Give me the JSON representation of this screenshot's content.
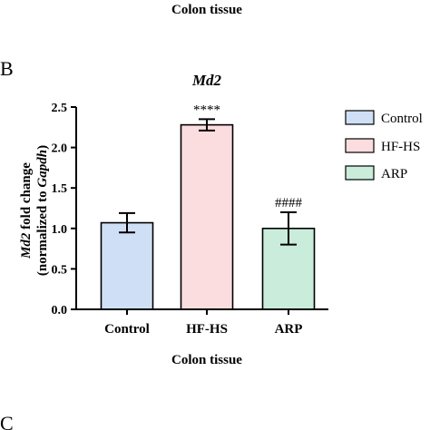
{
  "top_caption": "Colon tissue",
  "panel_b": "B",
  "panel_c": "C",
  "chart_data": {
    "type": "bar",
    "title": "Md2",
    "ylabel": {
      "line1_italic": "Md2",
      "line1_rest": " fold change",
      "line2_pre": "(normalized to ",
      "line2_italic": "Gapdh",
      "line2_post": ")"
    },
    "xlabel": "Colon tissue",
    "ylim": [
      0.0,
      2.5
    ],
    "yticks": [
      "0.0",
      "0.5",
      "1.0",
      "1.5",
      "2.0",
      "2.5"
    ],
    "categories": [
      "Control",
      "HF-HS",
      "ARP"
    ],
    "values": [
      1.07,
      2.28,
      1.0
    ],
    "errors": [
      0.12,
      0.07,
      0.2
    ],
    "annotations": [
      "",
      "****",
      "####"
    ],
    "colors": {
      "fill": [
        "#cfe0f6",
        "#fbdde0",
        "#c9ecdb"
      ],
      "stroke": "#000000"
    },
    "legend": {
      "position": "right",
      "entries": [
        "Control",
        "HF-HS",
        "ARP"
      ]
    }
  }
}
